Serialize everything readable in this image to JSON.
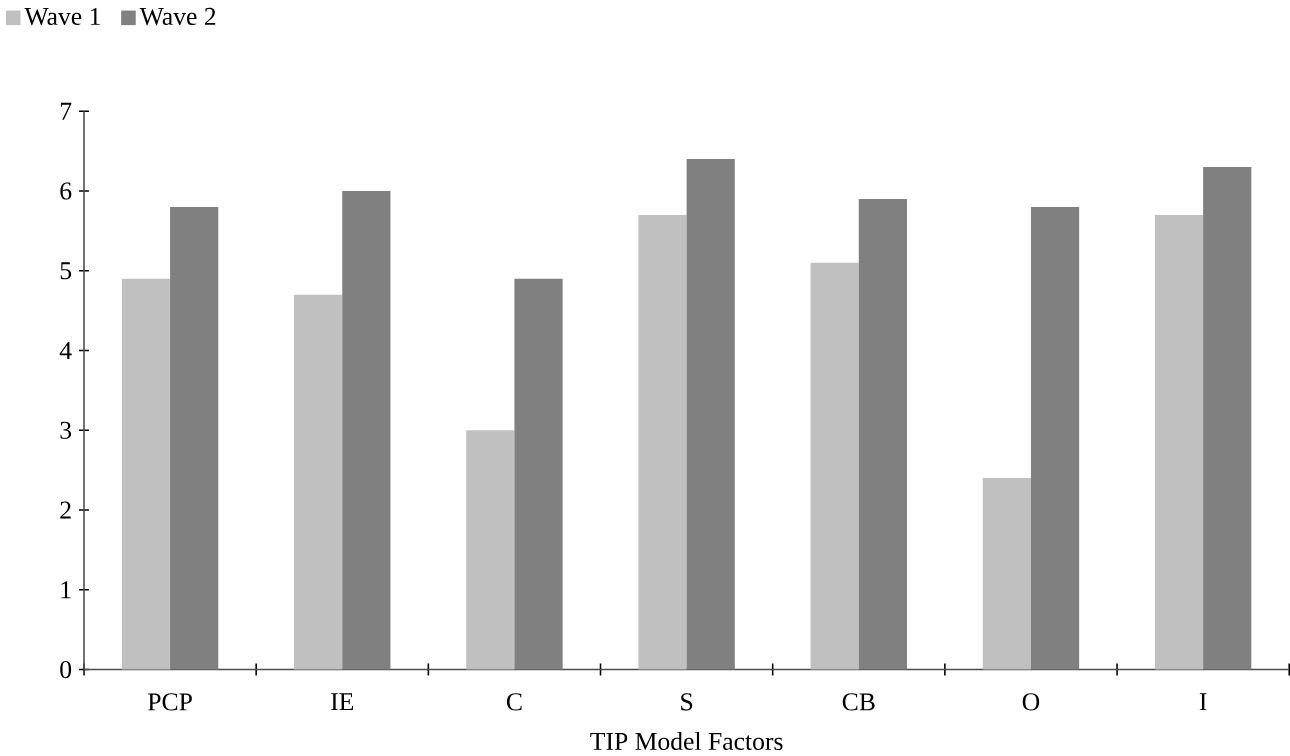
{
  "chart_data": {
    "type": "bar",
    "xlabel": "TIP Model Factors",
    "categories": [
      "PCP",
      "IE",
      "C",
      "S",
      "CB",
      "O",
      "I"
    ],
    "series": [
      {
        "name": "Wave 1",
        "color": "#c0c0c0",
        "values": [
          4.9,
          4.7,
          3.0,
          5.7,
          5.1,
          2.4,
          5.7
        ]
      },
      {
        "name": "Wave 2",
        "color": "#808080",
        "values": [
          5.8,
          6.0,
          4.9,
          6.4,
          5.9,
          5.8,
          6.3
        ]
      }
    ],
    "ylim": [
      0,
      7
    ],
    "yticks": [
      0,
      1,
      2,
      3,
      4,
      5,
      6,
      7
    ],
    "grid": false,
    "legend": "top left"
  }
}
